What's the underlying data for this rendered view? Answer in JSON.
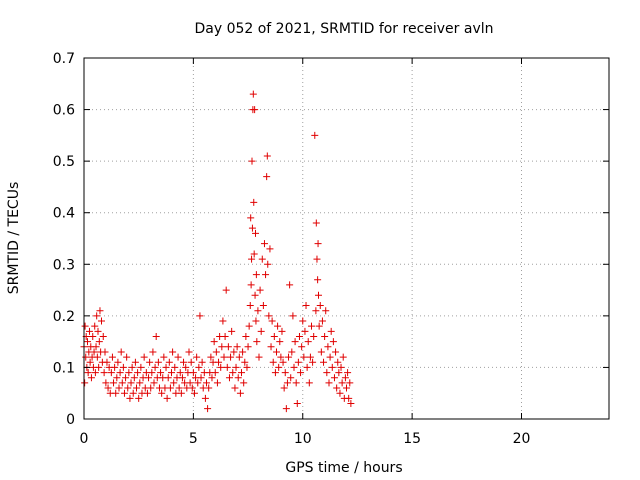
{
  "chart_data": {
    "type": "scatter",
    "title": "Day 052 of 2021, SRMTID for receiver avln",
    "xlabel": "GPS time / hours",
    "ylabel": "SRMTID / TECUs",
    "xlim": [
      0,
      24
    ],
    "ylim": [
      0,
      0.7
    ],
    "xticks": [
      0,
      5,
      10,
      15,
      20
    ],
    "yticks": [
      0,
      0.1,
      0.2,
      0.3,
      0.4,
      0.5,
      0.6,
      0.7
    ],
    "xtick_labels": [
      "0",
      "5",
      "10",
      "15",
      "20"
    ],
    "ytick_labels": [
      "0",
      "0.1",
      "0.2",
      "0.3",
      "0.4",
      "0.5",
      "0.6",
      "0.7"
    ],
    "grid": true,
    "marker": "+",
    "color": "#e00000",
    "series": [
      {
        "name": "SRMTID",
        "points": [
          [
            0.0,
            0.14
          ],
          [
            0.03,
            0.07
          ],
          [
            0.05,
            0.18
          ],
          [
            0.08,
            0.12
          ],
          [
            0.1,
            0.16
          ],
          [
            0.13,
            0.1
          ],
          [
            0.16,
            0.15
          ],
          [
            0.19,
            0.09
          ],
          [
            0.22,
            0.13
          ],
          [
            0.25,
            0.17
          ],
          [
            0.28,
            0.11
          ],
          [
            0.31,
            0.14
          ],
          [
            0.34,
            0.08
          ],
          [
            0.37,
            0.12
          ],
          [
            0.4,
            0.16
          ],
          [
            0.43,
            0.1
          ],
          [
            0.46,
            0.13
          ],
          [
            0.49,
            0.18
          ],
          [
            0.52,
            0.09
          ],
          [
            0.55,
            0.14
          ],
          [
            0.58,
            0.2
          ],
          [
            0.61,
            0.12
          ],
          [
            0.64,
            0.17
          ],
          [
            0.67,
            0.1
          ],
          [
            0.7,
            0.15
          ],
          [
            0.73,
            0.21
          ],
          [
            0.76,
            0.13
          ],
          [
            0.8,
            0.19
          ],
          [
            0.84,
            0.11
          ],
          [
            0.88,
            0.16
          ],
          [
            0.92,
            0.09
          ],
          [
            0.96,
            0.13
          ],
          [
            1.0,
            0.07
          ],
          [
            1.05,
            0.11
          ],
          [
            1.1,
            0.06
          ],
          [
            1.15,
            0.1
          ],
          [
            1.2,
            0.05
          ],
          [
            1.25,
            0.09
          ],
          [
            1.3,
            0.12
          ],
          [
            1.35,
            0.07
          ],
          [
            1.4,
            0.1
          ],
          [
            1.45,
            0.05
          ],
          [
            1.5,
            0.08
          ],
          [
            1.55,
            0.11
          ],
          [
            1.6,
            0.06
          ],
          [
            1.65,
            0.09
          ],
          [
            1.7,
            0.13
          ],
          [
            1.75,
            0.07
          ],
          [
            1.8,
            0.1
          ],
          [
            1.85,
            0.05
          ],
          [
            1.9,
            0.08
          ],
          [
            1.95,
            0.12
          ],
          [
            2.0,
            0.06
          ],
          [
            2.05,
            0.09
          ],
          [
            2.1,
            0.04
          ],
          [
            2.15,
            0.07
          ],
          [
            2.2,
            0.1
          ],
          [
            2.25,
            0.05
          ],
          [
            2.3,
            0.08
          ],
          [
            2.35,
            0.11
          ],
          [
            2.4,
            0.06
          ],
          [
            2.45,
            0.09
          ],
          [
            2.5,
            0.04
          ],
          [
            2.55,
            0.07
          ],
          [
            2.6,
            0.1
          ],
          [
            2.65,
            0.05
          ],
          [
            2.7,
            0.08
          ],
          [
            2.75,
            0.12
          ],
          [
            2.8,
            0.06
          ],
          [
            2.85,
            0.09
          ],
          [
            2.9,
            0.05
          ],
          [
            2.95,
            0.08
          ],
          [
            3.0,
            0.11
          ],
          [
            3.05,
            0.06
          ],
          [
            3.1,
            0.09
          ],
          [
            3.15,
            0.13
          ],
          [
            3.2,
            0.07
          ],
          [
            3.25,
            0.1
          ],
          [
            3.3,
            0.16
          ],
          [
            3.35,
            0.08
          ],
          [
            3.4,
            0.11
          ],
          [
            3.45,
            0.06
          ],
          [
            3.5,
            0.09
          ],
          [
            3.55,
            0.05
          ],
          [
            3.6,
            0.08
          ],
          [
            3.65,
            0.12
          ],
          [
            3.7,
            0.06
          ],
          [
            3.75,
            0.1
          ],
          [
            3.8,
            0.04
          ],
          [
            3.85,
            0.08
          ],
          [
            3.9,
            0.11
          ],
          [
            3.95,
            0.06
          ],
          [
            4.0,
            0.09
          ],
          [
            4.05,
            0.13
          ],
          [
            4.1,
            0.07
          ],
          [
            4.15,
            0.1
          ],
          [
            4.2,
            0.05
          ],
          [
            4.25,
            0.08
          ],
          [
            4.3,
            0.12
          ],
          [
            4.35,
            0.06
          ],
          [
            4.4,
            0.09
          ],
          [
            4.45,
            0.05
          ],
          [
            4.5,
            0.08
          ],
          [
            4.55,
            0.11
          ],
          [
            4.6,
            0.07
          ],
          [
            4.65,
            0.1
          ],
          [
            4.7,
            0.06
          ],
          [
            4.75,
            0.09
          ],
          [
            4.8,
            0.13
          ],
          [
            4.85,
            0.07
          ],
          [
            4.9,
            0.11
          ],
          [
            4.95,
            0.06
          ],
          [
            5.0,
            0.09
          ],
          [
            5.05,
            0.05
          ],
          [
            5.1,
            0.08
          ],
          [
            5.15,
            0.12
          ],
          [
            5.2,
            0.07
          ],
          [
            5.25,
            0.1
          ],
          [
            5.3,
            0.2
          ],
          [
            5.35,
            0.08
          ],
          [
            5.4,
            0.11
          ],
          [
            5.45,
            0.06
          ],
          [
            5.5,
            0.09
          ],
          [
            5.55,
            0.04
          ],
          [
            5.6,
            0.07
          ],
          [
            5.65,
            0.02
          ],
          [
            5.7,
            0.06
          ],
          [
            5.75,
            0.09
          ],
          [
            5.8,
            0.12
          ],
          [
            5.85,
            0.08
          ],
          [
            5.9,
            0.11
          ],
          [
            5.95,
            0.15
          ],
          [
            6.0,
            0.09
          ],
          [
            6.05,
            0.13
          ],
          [
            6.1,
            0.07
          ],
          [
            6.15,
            0.11
          ],
          [
            6.2,
            0.16
          ],
          [
            6.25,
            0.1
          ],
          [
            6.3,
            0.14
          ],
          [
            6.35,
            0.19
          ],
          [
            6.4,
            0.12
          ],
          [
            6.45,
            0.16
          ],
          [
            6.5,
            0.25
          ],
          [
            6.55,
            0.1
          ],
          [
            6.6,
            0.14
          ],
          [
            6.65,
            0.08
          ],
          [
            6.7,
            0.12
          ],
          [
            6.75,
            0.17
          ],
          [
            6.8,
            0.09
          ],
          [
            6.85,
            0.13
          ],
          [
            6.9,
            0.06
          ],
          [
            6.95,
            0.1
          ],
          [
            7.0,
            0.14
          ],
          [
            7.05,
            0.08
          ],
          [
            7.1,
            0.12
          ],
          [
            7.15,
            0.05
          ],
          [
            7.2,
            0.09
          ],
          [
            7.25,
            0.13
          ],
          [
            7.3,
            0.07
          ],
          [
            7.35,
            0.11
          ],
          [
            7.4,
            0.16
          ],
          [
            7.45,
            0.1
          ],
          [
            7.5,
            0.14
          ],
          [
            7.55,
            0.18
          ],
          [
            7.6,
            0.22
          ],
          [
            7.62,
            0.39
          ],
          [
            7.64,
            0.26
          ],
          [
            7.66,
            0.31
          ],
          [
            7.68,
            0.5
          ],
          [
            7.7,
            0.37
          ],
          [
            7.72,
            0.6
          ],
          [
            7.74,
            0.63
          ],
          [
            7.76,
            0.42
          ],
          [
            7.78,
            0.32
          ],
          [
            7.8,
            0.6
          ],
          [
            7.82,
            0.24
          ],
          [
            7.84,
            0.36
          ],
          [
            7.86,
            0.19
          ],
          [
            7.88,
            0.28
          ],
          [
            7.9,
            0.15
          ],
          [
            7.95,
            0.21
          ],
          [
            8.0,
            0.12
          ],
          [
            8.05,
            0.25
          ],
          [
            8.1,
            0.17
          ],
          [
            8.15,
            0.31
          ],
          [
            8.2,
            0.22
          ],
          [
            8.25,
            0.34
          ],
          [
            8.3,
            0.28
          ],
          [
            8.35,
            0.47
          ],
          [
            8.38,
            0.51
          ],
          [
            8.4,
            0.3
          ],
          [
            8.45,
            0.2
          ],
          [
            8.5,
            0.33
          ],
          [
            8.55,
            0.14
          ],
          [
            8.6,
            0.19
          ],
          [
            8.65,
            0.11
          ],
          [
            8.7,
            0.16
          ],
          [
            8.75,
            0.09
          ],
          [
            8.8,
            0.13
          ],
          [
            8.85,
            0.18
          ],
          [
            8.9,
            0.1
          ],
          [
            8.95,
            0.15
          ],
          [
            9.0,
            0.12
          ],
          [
            9.05,
            0.17
          ],
          [
            9.1,
            0.11
          ],
          [
            9.15,
            0.06
          ],
          [
            9.2,
            0.09
          ],
          [
            9.25,
            0.02
          ],
          [
            9.3,
            0.07
          ],
          [
            9.35,
            0.12
          ],
          [
            9.4,
            0.26
          ],
          [
            9.45,
            0.08
          ],
          [
            9.5,
            0.13
          ],
          [
            9.55,
            0.2
          ],
          [
            9.6,
            0.1
          ],
          [
            9.65,
            0.15
          ],
          [
            9.7,
            0.07
          ],
          [
            9.75,
            0.03
          ],
          [
            9.8,
            0.11
          ],
          [
            9.85,
            0.16
          ],
          [
            9.9,
            0.09
          ],
          [
            9.95,
            0.14
          ],
          [
            10.0,
            0.19
          ],
          [
            10.05,
            0.12
          ],
          [
            10.1,
            0.17
          ],
          [
            10.15,
            0.22
          ],
          [
            10.2,
            0.1
          ],
          [
            10.25,
            0.15
          ],
          [
            10.3,
            0.07
          ],
          [
            10.35,
            0.12
          ],
          [
            10.4,
            0.18
          ],
          [
            10.45,
            0.11
          ],
          [
            10.5,
            0.16
          ],
          [
            10.55,
            0.55
          ],
          [
            10.6,
            0.21
          ],
          [
            10.62,
            0.38
          ],
          [
            10.65,
            0.31
          ],
          [
            10.68,
            0.27
          ],
          [
            10.7,
            0.34
          ],
          [
            10.72,
            0.24
          ],
          [
            10.75,
            0.18
          ],
          [
            10.8,
            0.22
          ],
          [
            10.85,
            0.13
          ],
          [
            10.9,
            0.19
          ],
          [
            10.95,
            0.11
          ],
          [
            11.0,
            0.16
          ],
          [
            11.05,
            0.21
          ],
          [
            11.1,
            0.09
          ],
          [
            11.15,
            0.14
          ],
          [
            11.2,
            0.07
          ],
          [
            11.25,
            0.12
          ],
          [
            11.3,
            0.17
          ],
          [
            11.35,
            0.1
          ],
          [
            11.4,
            0.15
          ],
          [
            11.45,
            0.08
          ],
          [
            11.5,
            0.13
          ],
          [
            11.55,
            0.06
          ],
          [
            11.6,
            0.11
          ],
          [
            11.65,
            0.09
          ],
          [
            11.7,
            0.05
          ],
          [
            11.75,
            0.1
          ],
          [
            11.8,
            0.07
          ],
          [
            11.85,
            0.12
          ],
          [
            11.9,
            0.04
          ],
          [
            11.95,
            0.08
          ],
          [
            12.0,
            0.06
          ],
          [
            12.05,
            0.09
          ],
          [
            12.1,
            0.04
          ],
          [
            12.15,
            0.07
          ],
          [
            12.2,
            0.03
          ]
        ]
      }
    ]
  }
}
